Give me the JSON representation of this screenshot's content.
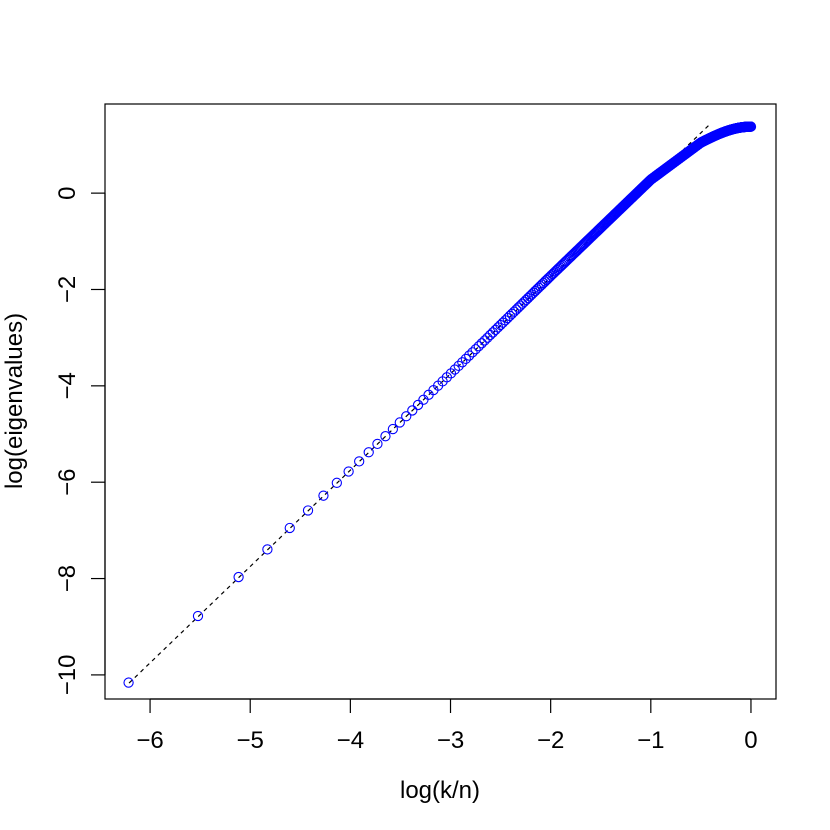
{
  "chart_data": {
    "type": "scatter",
    "title": "",
    "xlabel": "log(k/n)",
    "ylabel": "log(eigenvalues)",
    "xlim": [
      -6.45,
      0.25
    ],
    "ylim": [
      -10.5,
      1.85
    ],
    "xticks": [
      -6,
      -5,
      -4,
      -3,
      -2,
      -1,
      0
    ],
    "xtick_labels": [
      "−6",
      "−5",
      "−4",
      "−3",
      "−2",
      "−1",
      "0"
    ],
    "yticks": [
      -10,
      -8,
      -6,
      -4,
      -2,
      0
    ],
    "ytick_labels": [
      "−10",
      "−8",
      "−6",
      "−4",
      "−2",
      "0"
    ],
    "grid": false,
    "legend": "none",
    "n": 500,
    "series": [
      {
        "kind": "points",
        "marker": "open-circle",
        "color": "#0000ff",
        "x_formula": "log(k/n), k = 1..n",
        "sample_points": [
          {
            "x": -6.21,
            "y": -10.15
          },
          {
            "x": -5.52,
            "y": -8.75
          },
          {
            "x": -5.12,
            "y": -7.95
          },
          {
            "x": -4.83,
            "y": -7.35
          },
          {
            "x": -4.61,
            "y": -6.93
          },
          {
            "x": -3.0,
            "y": -3.75
          },
          {
            "x": -2.0,
            "y": -1.72
          },
          {
            "x": -1.0,
            "y": 0.28
          },
          {
            "x": -0.5,
            "y": 1.05
          },
          {
            "x": 0.0,
            "y": 1.38
          }
        ]
      },
      {
        "kind": "reference-line",
        "line_style": "dashed",
        "color": "#000000",
        "x_range": [
          -6.21,
          -0.42
        ],
        "intercept": 2.25,
        "slope": 2.0
      }
    ]
  }
}
